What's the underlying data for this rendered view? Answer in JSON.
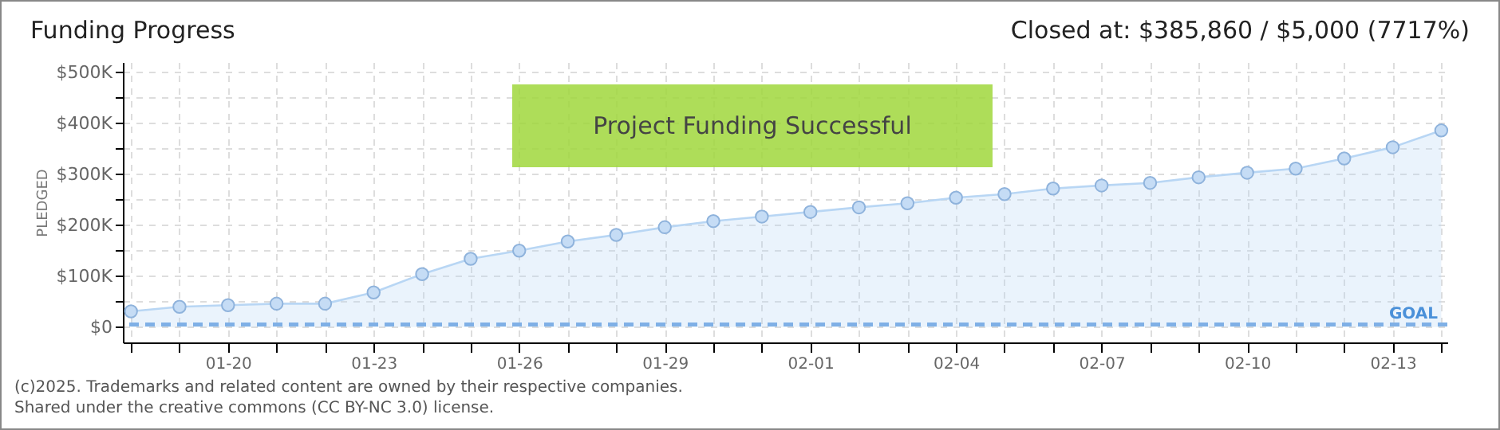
{
  "chart_data": {
    "type": "area",
    "title": "Funding Progress",
    "ylabel": "PLEDGED",
    "annotations": [
      "Closed at: $385,860 / $5,000 (7717%)",
      "Project Funding Successful",
      "(c)2025. Trademarks and related content are owned by their respective companies.",
      "Shared under the creative commons (CC BY-NC 3.0) license."
    ],
    "x": [
      "--01-18",
      "--01-19",
      "--01-20",
      "--01-21",
      "--01-22",
      "--01-23",
      "--01-24",
      "--01-25",
      "--01-26",
      "--01-27",
      "--01-28",
      "--01-29",
      "--01-30",
      "--01-31",
      "--02-01",
      "--02-02",
      "--02-03",
      "--02-04",
      "--02-05",
      "--02-06",
      "--02-07",
      "--02-08",
      "--02-09",
      "--02-10",
      "--02-11",
      "--02-12",
      "--02-13",
      "--02-14"
    ],
    "series": [
      {
        "color": "#b8d6f4",
        "values": [
          31000,
          40000,
          43000,
          46000,
          46000,
          68000,
          104000,
          134000,
          150000,
          168000,
          181000,
          196000,
          208000,
          217000,
          226000,
          235000,
          243000,
          254000,
          261000,
          272000,
          278000,
          283000,
          294000,
          303000,
          311000,
          331000,
          353000,
          385860
        ]
      }
    ],
    "xlim": [
      "--01-17T20:00",
      "--02-14T03:00"
    ],
    "xticks": [
      {
        "value": "--01-18",
        "label": null
      },
      {
        "value": "--01-19",
        "label": null
      },
      {
        "value": "--01-20",
        "label": "01-20"
      },
      {
        "value": "--01-21",
        "label": null
      },
      {
        "value": "--01-22",
        "label": null
      },
      {
        "value": "--01-23",
        "label": "01-23"
      },
      {
        "value": "--01-24",
        "label": null
      },
      {
        "value": "--01-25",
        "label": null
      },
      {
        "value": "--01-26",
        "label": "01-26"
      },
      {
        "value": "--01-27",
        "label": null
      },
      {
        "value": "--01-28",
        "label": null
      },
      {
        "value": "--01-29",
        "label": "01-29"
      },
      {
        "value": "--01-30",
        "label": null
      },
      {
        "value": "--01-31",
        "label": null
      },
      {
        "value": "--02-01",
        "label": "02-01"
      },
      {
        "value": "--02-02",
        "label": null
      },
      {
        "value": "--02-03",
        "label": null
      },
      {
        "value": "--02-04",
        "label": "02-04"
      },
      {
        "value": "--02-05",
        "label": null
      },
      {
        "value": "--02-06",
        "label": null
      },
      {
        "value": "--02-07",
        "label": "02-07"
      },
      {
        "value": "--02-08",
        "label": null
      },
      {
        "value": "--02-09",
        "label": null
      },
      {
        "value": "--02-10",
        "label": "02-10"
      },
      {
        "value": "--02-11",
        "label": null
      },
      {
        "value": "--02-12",
        "label": null
      },
      {
        "value": "--02-13",
        "label": "02-13"
      },
      {
        "value": "--02-14",
        "label": null
      }
    ],
    "ylim": [
      -30000,
      520000
    ],
    "yticks": [
      {
        "value": 0,
        "label": "$0"
      },
      {
        "value": 50000,
        "label": null
      },
      {
        "value": 100000,
        "label": "$100K"
      },
      {
        "value": 150000,
        "label": null
      },
      {
        "value": 200000,
        "label": "$200K"
      },
      {
        "value": 250000,
        "label": null
      },
      {
        "value": 300000,
        "label": "$300K"
      },
      {
        "value": 350000,
        "label": null
      },
      {
        "value": 400000,
        "label": "$400K"
      },
      {
        "value": 450000,
        "label": null
      },
      {
        "value": 500000,
        "label": "$500K"
      }
    ],
    "ref_lines": [
      {
        "axis": "y",
        "value": 5000,
        "label": "GOAL",
        "color": "#7fb0e6",
        "line_style": "dashed"
      }
    ],
    "grid": true,
    "marker": "circle"
  }
}
